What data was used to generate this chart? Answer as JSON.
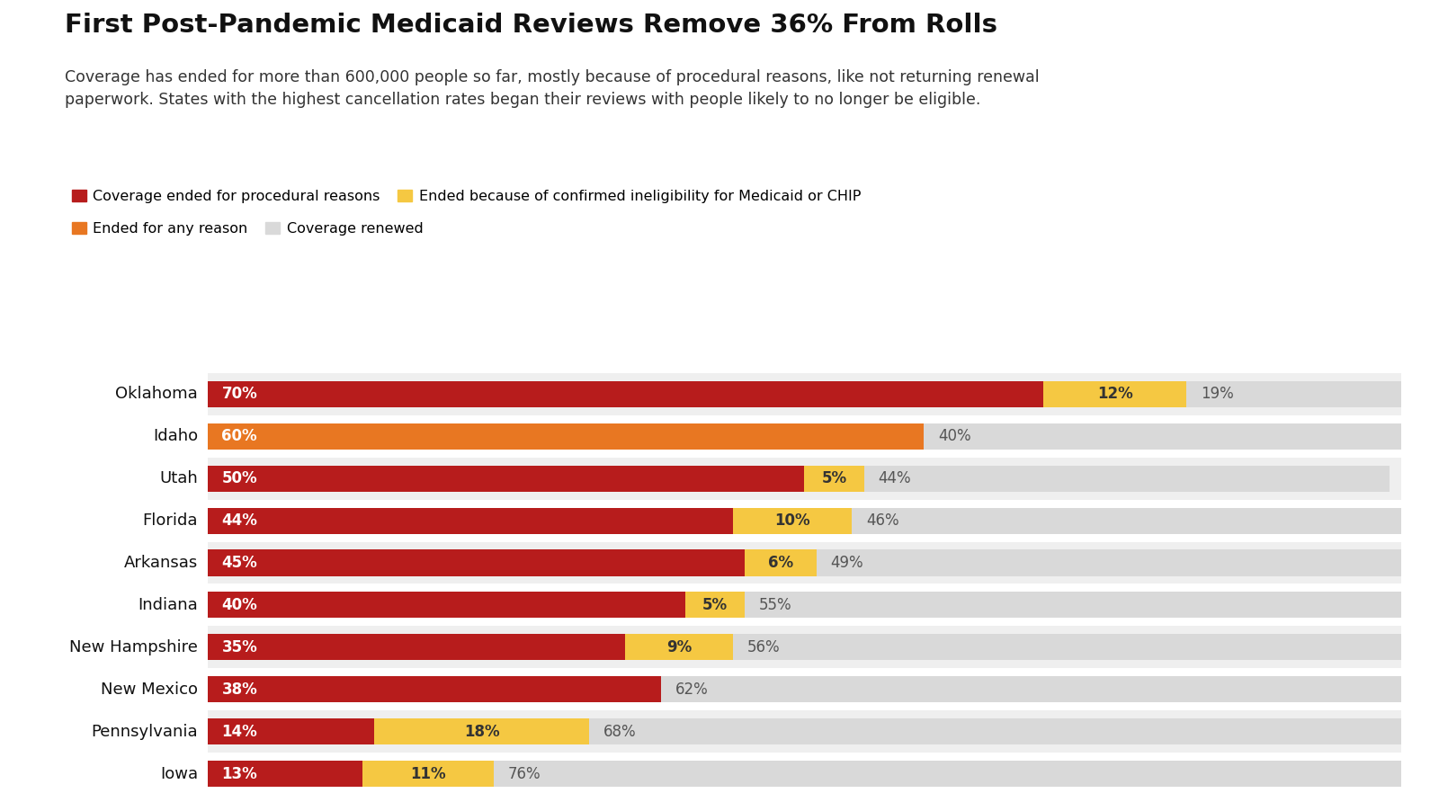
{
  "title": "First Post-Pandemic Medicaid Reviews Remove 36% From Rolls",
  "subtitle": "Coverage has ended for more than 600,000 people so far, mostly because of procedural reasons, like not returning renewal\npaperwork. States with the highest cancellation rates began their reviews with people likely to no longer be eligible.",
  "legend": [
    {
      "label": "Coverage ended for procedural reasons",
      "color": "#b71c1c"
    },
    {
      "label": "Ended because of confirmed ineligibility for Medicaid or CHIP",
      "color": "#f5c842"
    },
    {
      "label": "Ended for any reason",
      "color": "#e87722"
    },
    {
      "label": "Coverage renewed",
      "color": "#d9d9d9"
    }
  ],
  "states": [
    "Oklahoma",
    "Idaho",
    "Utah",
    "Florida",
    "Arkansas",
    "Indiana",
    "New Hampshire",
    "New Mexico",
    "Pennsylvania",
    "Iowa"
  ],
  "procedural": [
    70,
    0,
    50,
    44,
    45,
    40,
    35,
    38,
    14,
    13
  ],
  "ineligible": [
    12,
    0,
    5,
    10,
    6,
    5,
    9,
    0,
    18,
    11
  ],
  "any_reason": [
    0,
    60,
    0,
    0,
    0,
    0,
    0,
    0,
    0,
    0
  ],
  "renewed": [
    19,
    40,
    44,
    46,
    49,
    55,
    56,
    62,
    68,
    76
  ],
  "colors": {
    "procedural": "#b71c1c",
    "ineligible": "#f5c842",
    "any_reason": "#e87722",
    "renewed": "#d9d9d9",
    "background": "#ffffff",
    "row_even": "#efefef",
    "row_odd": "#ffffff"
  },
  "bar_height": 0.62,
  "figsize": [
    15.9,
    9.02
  ],
  "dpi": 100
}
